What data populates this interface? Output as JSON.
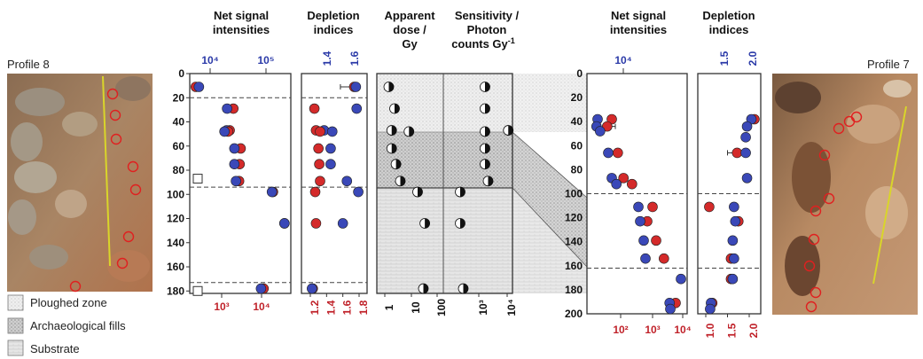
{
  "colors": {
    "red": "#d42a2a",
    "blue": "#3a48b8",
    "red_text": "#c0222a",
    "blue_text": "#2b3aa8",
    "dashed": "#444444"
  },
  "photos": {
    "left_label": "Profile 8",
    "right_label": "Profile 7"
  },
  "legend": [
    {
      "label": "Ploughed zone",
      "pattern": "ploughed"
    },
    {
      "label": "Archaeological fills",
      "pattern": "fills"
    },
    {
      "label": "Substrate",
      "pattern": "substrate"
    }
  ],
  "panel_titles": {
    "p1": [
      "Net signal",
      "intensities"
    ],
    "p2": [
      "Depletion",
      "indices"
    ],
    "p3": [
      "Apparent",
      "dose /",
      "Gy"
    ],
    "p4": [
      "Sensitivity /",
      "Photon",
      "counts Gy"
    ],
    "p4_sup": "-1",
    "p5": [
      "Net signal",
      "intensities"
    ],
    "p6": [
      "Depletion",
      "indices"
    ]
  },
  "chart_data": [
    {
      "type": "scatter",
      "panel": "profile8-net-signal",
      "depth_axis": {
        "ticks": [
          "0",
          "20",
          "40",
          "60",
          "80",
          "100",
          "120",
          "140",
          "160",
          "180"
        ],
        "range": [
          0,
          182
        ],
        "inverted": true
      },
      "top_ticks_blue": [
        "10⁴",
        "10⁵"
      ],
      "bottom_ticks_red": [
        "10³",
        "10⁴"
      ],
      "boundaries": [
        20,
        94,
        173
      ],
      "samples": [
        {
          "depth": 11,
          "red": 3.78,
          "blue": 3.84
        },
        {
          "depth": 29,
          "red": 4.5,
          "blue": 4.38
        },
        {
          "depth": 47,
          "red": 4.43,
          "blue": 4.37
        },
        {
          "depth": 48,
          "red": 4.4,
          "blue": 4.33
        },
        {
          "depth": 62,
          "red": 4.64,
          "blue": 4.52
        },
        {
          "depth": 75,
          "red": 4.62,
          "blue": 4.52
        },
        {
          "depth": 89,
          "red": 4.61,
          "blue": 4.55
        },
        {
          "depth": 98,
          "red": 5.26,
          "blue": 5.24
        },
        {
          "depth": 124,
          "red": 5.48,
          "blue": 5.48
        },
        {
          "depth": 178,
          "red": 5.08,
          "blue": 5.03
        }
      ],
      "markers": [
        {
          "depth": 87,
          "symbol": "open-square"
        },
        {
          "depth": 180,
          "symbol": "open-square"
        }
      ]
    },
    {
      "type": "scatter",
      "panel": "profile8-depletion",
      "top_ticks_blue": [
        "1.4",
        "1.6"
      ],
      "bottom_ticks_red": [
        "1.2",
        "1.4",
        "1.6",
        "1.8"
      ],
      "boundaries": [
        20,
        94,
        173
      ],
      "samples": [
        {
          "depth": 11,
          "red": 1.74,
          "blue": 1.76
        },
        {
          "depth": 29,
          "red": 1.25,
          "blue": 1.77
        },
        {
          "depth": 47,
          "red": 1.27,
          "blue": 1.37
        },
        {
          "depth": 48,
          "red": 1.32,
          "blue": 1.47
        },
        {
          "depth": 62,
          "red": 1.3,
          "blue": 1.45
        },
        {
          "depth": 75,
          "red": 1.31,
          "blue": 1.45
        },
        {
          "depth": 89,
          "red": 1.32,
          "blue": 1.65
        },
        {
          "depth": 98,
          "red": 1.26,
          "blue": 1.79
        },
        {
          "depth": 124,
          "red": 1.27,
          "blue": 1.6
        },
        {
          "depth": 178,
          "red": 1.23,
          "blue": 1.22
        }
      ]
    },
    {
      "type": "scatter",
      "panel": "apparent-dose",
      "bottom_ticks": [
        "1",
        "10",
        "100"
      ],
      "samples": [
        {
          "depth": 11,
          "value": 0.2
        },
        {
          "depth": 29,
          "value": 0.4
        },
        {
          "depth": 47,
          "value": 0.3
        },
        {
          "depth": 48,
          "value": 0.9
        },
        {
          "depth": 62,
          "value": 0.3
        },
        {
          "depth": 75,
          "value": 0.45
        },
        {
          "depth": 89,
          "value": 0.6
        },
        {
          "depth": 98,
          "value": 1.2
        },
        {
          "depth": 124,
          "value": 1.45
        },
        {
          "depth": 178,
          "value": 1.4
        }
      ]
    },
    {
      "type": "scatter",
      "panel": "sensitivity",
      "bottom_ticks": [
        "10³",
        "10⁴"
      ],
      "samples": [
        {
          "depth": 11,
          "value": 3.2
        },
        {
          "depth": 29,
          "value": 3.2
        },
        {
          "depth": 47,
          "value": 3.95
        },
        {
          "depth": 48,
          "value": 3.2
        },
        {
          "depth": 62,
          "value": 3.2
        },
        {
          "depth": 75,
          "value": 3.2
        },
        {
          "depth": 89,
          "value": 3.3
        },
        {
          "depth": 98,
          "value": 2.4
        },
        {
          "depth": 124,
          "value": 2.4
        },
        {
          "depth": 178,
          "value": 2.5
        }
      ]
    },
    {
      "type": "scatter",
      "panel": "profile7-net-signal",
      "depth_axis": {
        "ticks": [
          "0",
          "20",
          "40",
          "60",
          "80",
          "100",
          "120",
          "140",
          "160",
          "180",
          "200"
        ],
        "range": [
          0,
          200
        ],
        "inverted": true
      },
      "top_ticks_blue": [
        "10⁴"
      ],
      "bottom_ticks_red": [
        "10²",
        "10³",
        "10⁴"
      ],
      "boundaries": [
        100,
        162
      ],
      "samples": [
        {
          "depth": 38,
          "red": 2.05,
          "blue": 1.65
        },
        {
          "depth": 44,
          "red": 1.92,
          "blue": 1.62
        },
        {
          "depth": 48,
          "red": null,
          "blue": 1.72
        },
        {
          "depth": 66,
          "red": 2.22,
          "blue": 1.95
        },
        {
          "depth": 87,
          "red": 2.38,
          "blue": 2.05
        },
        {
          "depth": 92,
          "red": 2.62,
          "blue": 2.18
        },
        {
          "depth": 111,
          "red": 3.2,
          "blue": 2.8
        },
        {
          "depth": 123,
          "red": 3.05,
          "blue": 2.85
        },
        {
          "depth": 139,
          "red": 3.3,
          "blue": 2.95
        },
        {
          "depth": 154,
          "red": 3.52,
          "blue": 3.0
        },
        {
          "depth": 171,
          "red": null,
          "blue": 4.0
        },
        {
          "depth": 191,
          "red": 3.85,
          "blue": 3.68
        },
        {
          "depth": 196,
          "red": null,
          "blue": 3.7
        }
      ]
    },
    {
      "type": "scatter",
      "panel": "profile7-depletion",
      "top_ticks_blue": [
        "1.5",
        "2.0"
      ],
      "bottom_ticks_red": [
        "1.0",
        "1.5",
        "2.0"
      ],
      "boundaries": [
        100,
        162
      ],
      "samples": [
        {
          "depth": 38,
          "red": 2.12,
          "blue": 2.05
        },
        {
          "depth": 44,
          "red": null,
          "blue": 1.95
        },
        {
          "depth": 53,
          "red": null,
          "blue": 1.92
        },
        {
          "depth": 66,
          "red": 1.72,
          "blue": 1.92
        },
        {
          "depth": 87,
          "red": null,
          "blue": 1.95
        },
        {
          "depth": 111,
          "red": 1.08,
          "blue": 1.65
        },
        {
          "depth": 123,
          "red": 1.75,
          "blue": 1.68
        },
        {
          "depth": 139,
          "red": null,
          "blue": 1.62
        },
        {
          "depth": 154,
          "red": 1.58,
          "blue": 1.65
        },
        {
          "depth": 171,
          "red": 1.58,
          "blue": 1.62
        },
        {
          "depth": 191,
          "red": 1.15,
          "blue": 1.12
        },
        {
          "depth": 196,
          "red": null,
          "blue": 1.1
        }
      ]
    }
  ]
}
